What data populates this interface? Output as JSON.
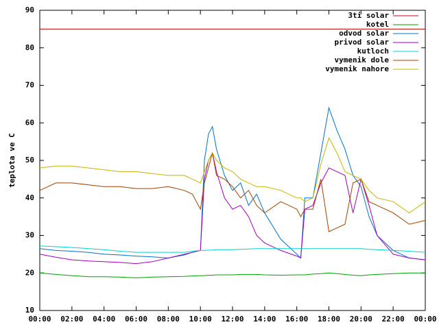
{
  "chart_data": {
    "type": "line",
    "y_label": "teplota ve C",
    "x": [
      0,
      1,
      2,
      3,
      4,
      5,
      6,
      7,
      8,
      9,
      9.5,
      10,
      10.25,
      10.5,
      10.75,
      11,
      11.5,
      12,
      12.5,
      13,
      13.5,
      14,
      15,
      16,
      16.25,
      16.5,
      17,
      17.5,
      18,
      18.5,
      19,
      19.5,
      20,
      20.5,
      21,
      22,
      23,
      24
    ],
    "xlim": [
      0,
      24
    ],
    "xticks": [
      {
        "value": 0,
        "label": "00:00"
      },
      {
        "value": 2,
        "label": "02:00"
      },
      {
        "value": 4,
        "label": "04:00"
      },
      {
        "value": 6,
        "label": "06:00"
      },
      {
        "value": 8,
        "label": "08:00"
      },
      {
        "value": 10,
        "label": "10:00"
      },
      {
        "value": 12,
        "label": "12:00"
      },
      {
        "value": 14,
        "label": "14:00"
      },
      {
        "value": 16,
        "label": "16:00"
      },
      {
        "value": 18,
        "label": "18:00"
      },
      {
        "value": 20,
        "label": "20:00"
      },
      {
        "value": 22,
        "label": "22:00"
      },
      {
        "value": 24,
        "label": "00:00"
      }
    ],
    "ylim": [
      10,
      90
    ],
    "yticks": [
      10,
      20,
      30,
      40,
      50,
      60,
      70,
      80,
      90
    ],
    "grid": false,
    "legend": "top-right",
    "series": [
      {
        "name": "3ti solar",
        "color": "#c00000",
        "values": [
          85,
          85,
          85,
          85,
          85,
          85,
          85,
          85,
          85,
          85,
          85,
          85,
          85,
          85,
          85,
          85,
          85,
          85,
          85,
          85,
          85,
          85,
          85,
          85,
          85,
          85,
          85,
          85,
          85,
          85,
          85,
          85,
          85,
          85,
          85,
          85,
          85,
          85
        ]
      },
      {
        "name": "kotel",
        "color": "#00a000",
        "values": [
          20,
          19.6,
          19.3,
          19,
          19,
          18.9,
          18.7,
          18.9,
          19,
          19.1,
          19.2,
          19.3,
          19.3,
          19.4,
          19.4,
          19.5,
          19.5,
          19.5,
          19.6,
          19.6,
          19.6,
          19.5,
          19.4,
          19.5,
          19.5,
          19.5,
          19.7,
          19.8,
          20,
          19.8,
          19.6,
          19.4,
          19.3,
          19.5,
          19.6,
          19.8,
          20,
          20
        ]
      },
      {
        "name": "odvod solar",
        "color": "#0070d0",
        "values": [
          26.5,
          26,
          25.8,
          25.5,
          25,
          24.8,
          24.5,
          24.3,
          24,
          24.8,
          25.5,
          26,
          50,
          57,
          59,
          53,
          46,
          42,
          44,
          38,
          41,
          36,
          29,
          25,
          24,
          40,
          40,
          52,
          64,
          58,
          53,
          46,
          43,
          35,
          30,
          26,
          24,
          23.5
        ]
      },
      {
        "name": "privod solar",
        "color": "#a000c0",
        "values": [
          25,
          24.2,
          23.5,
          23.2,
          23,
          22.8,
          22.5,
          23,
          24,
          25,
          25.5,
          26,
          45,
          50,
          52,
          47,
          40,
          37,
          38,
          35,
          30,
          28,
          26,
          24.5,
          24,
          37,
          38,
          44,
          48,
          47,
          46,
          36,
          45,
          38,
          30,
          25,
          24,
          23.5
        ]
      },
      {
        "name": "kutloch",
        "color": "#00d0d0",
        "values": [
          27.2,
          27,
          26.8,
          26.5,
          26.2,
          25.8,
          25.5,
          25.5,
          25.5,
          25.5,
          25.8,
          26,
          26,
          26.1,
          26.1,
          26.2,
          26.2,
          26.2,
          26.3,
          26.4,
          26.5,
          26.5,
          26.5,
          26.5,
          26.5,
          26.5,
          26.5,
          26.5,
          26.5,
          26.5,
          26.5,
          26.5,
          26.5,
          26.3,
          26.2,
          26,
          25.8,
          25.5
        ]
      },
      {
        "name": "vymenik dole",
        "color": "#a04000",
        "values": [
          42,
          44,
          44,
          43.5,
          43,
          43,
          42.5,
          42.5,
          43,
          42,
          41,
          37,
          44,
          48,
          52,
          46,
          45,
          43,
          40,
          42,
          38,
          36,
          39,
          37,
          35,
          37,
          37,
          45,
          31,
          32,
          33,
          44,
          45,
          39,
          38,
          36,
          33,
          34
        ]
      },
      {
        "name": "vymenik nahore",
        "color": "#c8b400",
        "values": [
          48,
          48.5,
          48.5,
          48,
          47.5,
          47,
          47,
          46.5,
          46,
          46,
          45,
          44,
          47,
          50,
          52,
          50,
          48,
          47,
          45,
          44,
          43,
          43,
          42,
          40,
          40,
          39,
          40,
          49,
          56,
          52,
          47,
          46,
          45,
          42,
          40,
          39,
          36,
          39
        ]
      }
    ]
  }
}
